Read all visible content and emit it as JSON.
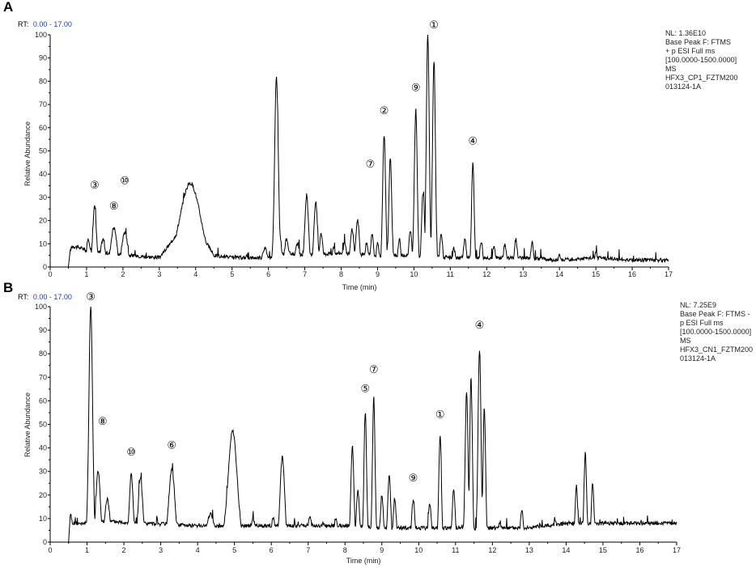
{
  "chart_data": [
    {
      "panel": "A",
      "type": "line",
      "rt_label": "RT:",
      "rt_range": "0.00 - 17.00",
      "xlabel": "Time (min)",
      "ylabel": "Relative Abundance",
      "xlim": [
        0,
        17
      ],
      "ylim": [
        0,
        100
      ],
      "x_ticks": [
        "0",
        "1",
        "2",
        "3",
        "4",
        "5",
        "6",
        "7",
        "8",
        "9",
        "10",
        "11",
        "12",
        "13",
        "14",
        "15",
        "16",
        "17"
      ],
      "y_ticks": [
        "0",
        "10",
        "20",
        "30",
        "40",
        "50",
        "60",
        "70",
        "80",
        "90",
        "100"
      ],
      "info": [
        "NL: 1.36E10",
        "Base Peak F: FTMS",
        "+ p ESI Full ms",
        "[100.0000-1500.0000]",
        "MS",
        "HFX3_CP1_FZTM200",
        "013124-1A"
      ],
      "baseline": [
        [
          0,
          0
        ],
        [
          0.5,
          0
        ],
        [
          0.55,
          7
        ],
        [
          0.6,
          9
        ],
        [
          0.9,
          8
        ],
        [
          1.0,
          7
        ],
        [
          1.5,
          6
        ],
        [
          2.2,
          5
        ],
        [
          3.0,
          4
        ],
        [
          3.3,
          10
        ],
        [
          3.5,
          15
        ],
        [
          4.2,
          13
        ],
        [
          4.5,
          5
        ],
        [
          5.0,
          4
        ],
        [
          6.0,
          4
        ],
        [
          6.5,
          6
        ],
        [
          7.0,
          5
        ],
        [
          8.0,
          6
        ],
        [
          9.0,
          5
        ],
        [
          10.0,
          5
        ],
        [
          11.0,
          4
        ],
        [
          12.0,
          4
        ],
        [
          13.0,
          4
        ],
        [
          14.0,
          3
        ],
        [
          15.0,
          4
        ],
        [
          16.0,
          3
        ],
        [
          16.9,
          3
        ],
        [
          17,
          3
        ]
      ],
      "peaks": [
        [
          1.05,
          12,
          0.05
        ],
        [
          1.22,
          26,
          0.05
        ],
        [
          1.45,
          12,
          0.06
        ],
        [
          1.75,
          17,
          0.08
        ],
        [
          2.05,
          15,
          0.08
        ],
        [
          3.85,
          36,
          0.28
        ],
        [
          3.7,
          8,
          0.2
        ],
        [
          5.9,
          8,
          0.08
        ],
        [
          6.22,
          82,
          0.05
        ],
        [
          6.3,
          16,
          0.05
        ],
        [
          6.5,
          12,
          0.06
        ],
        [
          6.8,
          10,
          0.06
        ],
        [
          7.05,
          31,
          0.05
        ],
        [
          7.3,
          28,
          0.05
        ],
        [
          7.45,
          14,
          0.05
        ],
        [
          7.8,
          8,
          0.05
        ],
        [
          8.1,
          10,
          0.05
        ],
        [
          8.3,
          16,
          0.05
        ],
        [
          8.45,
          20,
          0.05
        ],
        [
          8.7,
          10,
          0.05
        ],
        [
          8.85,
          14,
          0.04
        ],
        [
          9.0,
          10,
          0.04
        ],
        [
          9.18,
          57,
          0.04
        ],
        [
          9.35,
          47,
          0.04
        ],
        [
          9.6,
          12,
          0.04
        ],
        [
          9.9,
          16,
          0.04
        ],
        [
          10.05,
          68,
          0.04
        ],
        [
          10.25,
          32,
          0.04
        ],
        [
          10.38,
          100,
          0.04
        ],
        [
          10.55,
          89,
          0.04
        ],
        [
          10.75,
          14,
          0.04
        ],
        [
          11.1,
          8,
          0.04
        ],
        [
          11.4,
          12,
          0.04
        ],
        [
          11.62,
          45,
          0.035
        ],
        [
          11.85,
          11,
          0.04
        ],
        [
          12.2,
          9,
          0.04
        ],
        [
          12.5,
          10,
          0.04
        ],
        [
          12.8,
          12,
          0.04
        ],
        [
          13.25,
          11,
          0.04
        ],
        [
          14.0,
          5,
          0.04
        ],
        [
          15.0,
          6,
          0.04
        ]
      ],
      "annotations": [
        {
          "label": "①",
          "rt": 10.55,
          "y": 100
        },
        {
          "label": "②",
          "rt": 9.18,
          "y": 63
        },
        {
          "label": "③",
          "rt": 1.22,
          "y": 31
        },
        {
          "label": "④",
          "rt": 11.62,
          "y": 50
        },
        {
          "label": "⑦",
          "rt": 8.8,
          "y": 40
        },
        {
          "label": "⑧",
          "rt": 1.75,
          "y": 22
        },
        {
          "label": "⑨",
          "rt": 10.05,
          "y": 73
        },
        {
          "label": "⑩",
          "rt": 2.05,
          "y": 33
        }
      ]
    },
    {
      "panel": "B",
      "type": "line",
      "rt_label": "RT:",
      "rt_range": "0.00 - 17.00",
      "xlabel": "Time (min)",
      "ylabel": "Relative Abundance",
      "xlim": [
        0,
        17
      ],
      "ylim": [
        0,
        100
      ],
      "x_ticks": [
        "0",
        "1",
        "2",
        "3",
        "4",
        "5",
        "6",
        "7",
        "8",
        "9",
        "10",
        "11",
        "12",
        "13",
        "14",
        "15",
        "16",
        "17"
      ],
      "y_ticks": [
        "0",
        "10",
        "20",
        "30",
        "40",
        "50",
        "60",
        "70",
        "80",
        "90",
        "100"
      ],
      "info": [
        "NL: 7.25E9",
        "Base Peak F: FTMS -",
        "p ESI Full ms",
        "[100.0000-1500.0000]",
        "MS",
        "HFX3_CN1_FZTM200",
        "013124-1A"
      ],
      "baseline": [
        [
          0,
          0
        ],
        [
          0.5,
          0
        ],
        [
          0.55,
          13
        ],
        [
          0.6,
          8
        ],
        [
          0.9,
          8
        ],
        [
          1.0,
          8
        ],
        [
          1.5,
          9
        ],
        [
          2.5,
          8
        ],
        [
          4.0,
          7
        ],
        [
          5.0,
          7
        ],
        [
          6.0,
          7
        ],
        [
          7.0,
          7
        ],
        [
          8.0,
          7
        ],
        [
          9.0,
          6
        ],
        [
          10.0,
          6
        ],
        [
          11.0,
          6
        ],
        [
          12.0,
          6
        ],
        [
          13.0,
          6
        ],
        [
          14.0,
          8
        ],
        [
          15.0,
          8
        ],
        [
          16.0,
          8
        ],
        [
          16.9,
          8
        ],
        [
          17,
          8
        ]
      ],
      "peaks": [
        [
          1.1,
          100,
          0.05
        ],
        [
          1.3,
          30,
          0.06
        ],
        [
          1.55,
          18,
          0.07
        ],
        [
          2.2,
          29,
          0.05
        ],
        [
          2.45,
          27,
          0.06
        ],
        [
          3.3,
          31,
          0.08
        ],
        [
          4.35,
          12,
          0.1
        ],
        [
          4.95,
          47,
          0.12
        ],
        [
          5.5,
          10,
          0.05
        ],
        [
          6.3,
          36,
          0.06
        ],
        [
          6.05,
          10,
          0.05
        ],
        [
          7.05,
          11,
          0.05
        ],
        [
          7.4,
          8,
          0.05
        ],
        [
          7.75,
          10,
          0.05
        ],
        [
          8.2,
          41,
          0.04
        ],
        [
          8.35,
          22,
          0.04
        ],
        [
          8.55,
          55,
          0.035
        ],
        [
          8.78,
          62,
          0.035
        ],
        [
          9.0,
          20,
          0.04
        ],
        [
          9.2,
          28,
          0.04
        ],
        [
          9.35,
          18,
          0.04
        ],
        [
          9.85,
          18,
          0.04
        ],
        [
          10.3,
          16,
          0.04
        ],
        [
          10.58,
          45,
          0.035
        ],
        [
          10.95,
          22,
          0.04
        ],
        [
          11.3,
          63,
          0.04
        ],
        [
          11.42,
          70,
          0.035
        ],
        [
          11.65,
          82,
          0.04
        ],
        [
          11.78,
          57,
          0.035
        ],
        [
          12.2,
          8,
          0.04
        ],
        [
          12.8,
          14,
          0.04
        ],
        [
          13.7,
          10,
          0.04
        ],
        [
          14.28,
          24,
          0.035
        ],
        [
          14.52,
          38,
          0.035
        ],
        [
          14.72,
          25,
          0.035
        ],
        [
          16.2,
          9,
          0.04
        ]
      ],
      "annotations": [
        {
          "label": "①",
          "rt": 10.58,
          "y": 50
        },
        {
          "label": "③",
          "rt": 1.1,
          "y": 100
        },
        {
          "label": "④",
          "rt": 11.65,
          "y": 88
        },
        {
          "label": "⑤",
          "rt": 8.55,
          "y": 61
        },
        {
          "label": "⑥",
          "rt": 3.3,
          "y": 37
        },
        {
          "label": "⑦",
          "rt": 8.78,
          "y": 69
        },
        {
          "label": "⑧",
          "rt": 1.42,
          "y": 47
        },
        {
          "label": "⑨",
          "rt": 9.85,
          "y": 23
        },
        {
          "label": "⑩",
          "rt": 2.2,
          "y": 34
        }
      ]
    }
  ]
}
